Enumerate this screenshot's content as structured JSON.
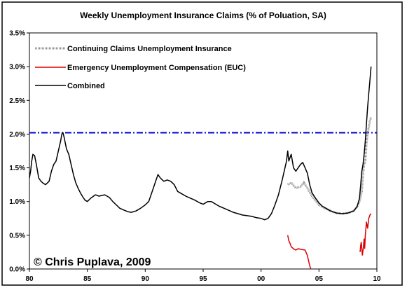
{
  "chart_data": {
    "type": "line",
    "title": "Weekly Unemployment Insurance Claims (% of Poluation, SA)",
    "xlabel": "",
    "ylabel": "",
    "xlim": [
      1980,
      2010
    ],
    "ylim": [
      0.0,
      3.5
    ],
    "x_ticks": [
      1980,
      1985,
      1990,
      1995,
      2000,
      2005,
      2010
    ],
    "x_tick_labels": [
      "80",
      "85",
      "90",
      "95",
      "00",
      "05",
      "10"
    ],
    "y_ticks": [
      0.0,
      0.5,
      1.0,
      1.5,
      2.0,
      2.5,
      3.0,
      3.5
    ],
    "y_tick_labels": [
      "0.0%",
      "0.5%",
      "1.0%",
      "1.5%",
      "2.0%",
      "2.5%",
      "3.0%",
      "3.5%"
    ],
    "grid": false,
    "legend_position": "top-left",
    "reference_line": {
      "y": 2.02,
      "color": "#0000cc",
      "style": "dash-dot"
    },
    "credit": "© Chris Puplava, 2009",
    "series": [
      {
        "name": "Continuing Claims Unemployment Insurance",
        "color": "#888888",
        "points": [
          [
            2002.3,
            1.25
          ],
          [
            2002.6,
            1.28
          ],
          [
            2003.0,
            1.2
          ],
          [
            2003.4,
            1.22
          ],
          [
            2003.7,
            1.28
          ],
          [
            2004.0,
            1.2
          ],
          [
            2004.4,
            1.08
          ],
          [
            2005.0,
            0.95
          ],
          [
            2005.5,
            0.9
          ],
          [
            2006.0,
            0.86
          ],
          [
            2006.5,
            0.83
          ],
          [
            2007.0,
            0.82
          ],
          [
            2007.5,
            0.83
          ],
          [
            2008.0,
            0.86
          ],
          [
            2008.3,
            0.92
          ],
          [
            2008.5,
            1.0
          ],
          [
            2008.7,
            1.15
          ],
          [
            2008.8,
            1.4
          ],
          [
            2008.9,
            1.55
          ],
          [
            2009.0,
            1.6
          ],
          [
            2009.1,
            1.85
          ],
          [
            2009.2,
            2.0
          ],
          [
            2009.3,
            2.1
          ],
          [
            2009.4,
            2.2
          ],
          [
            2009.5,
            2.25
          ]
        ]
      },
      {
        "name": "Emergency Unemployment Compensation (EUC)",
        "color": "#dd0000",
        "segments": [
          [
            [
              2002.3,
              0.5
            ],
            [
              2002.4,
              0.42
            ],
            [
              2002.5,
              0.38
            ],
            [
              2002.6,
              0.33
            ],
            [
              2002.8,
              0.3
            ],
            [
              2003.0,
              0.28
            ],
            [
              2003.2,
              0.3
            ],
            [
              2003.5,
              0.29
            ],
            [
              2003.8,
              0.28
            ],
            [
              2004.0,
              0.2
            ],
            [
              2004.1,
              0.12
            ],
            [
              2004.2,
              0.05
            ],
            [
              2004.3,
              0.0
            ]
          ],
          [
            [
              2008.55,
              0.25
            ],
            [
              2008.6,
              0.35
            ],
            [
              2008.65,
              0.4
            ],
            [
              2008.7,
              0.3
            ],
            [
              2008.75,
              0.2
            ],
            [
              2008.85,
              0.35
            ],
            [
              2008.9,
              0.45
            ],
            [
              2008.95,
              0.3
            ],
            [
              2009.0,
              0.5
            ],
            [
              2009.1,
              0.7
            ],
            [
              2009.2,
              0.6
            ],
            [
              2009.3,
              0.75
            ],
            [
              2009.4,
              0.8
            ],
            [
              2009.5,
              0.82
            ]
          ]
        ]
      },
      {
        "name": "Combined",
        "color": "#000000",
        "points": [
          [
            1980.0,
            1.35
          ],
          [
            1980.1,
            1.45
          ],
          [
            1980.2,
            1.6
          ],
          [
            1980.3,
            1.7
          ],
          [
            1980.45,
            1.68
          ],
          [
            1980.6,
            1.55
          ],
          [
            1980.8,
            1.35
          ],
          [
            1981.0,
            1.3
          ],
          [
            1981.2,
            1.27
          ],
          [
            1981.4,
            1.25
          ],
          [
            1981.7,
            1.3
          ],
          [
            1981.9,
            1.45
          ],
          [
            1982.1,
            1.55
          ],
          [
            1982.3,
            1.6
          ],
          [
            1982.5,
            1.75
          ],
          [
            1982.7,
            1.9
          ],
          [
            1982.8,
            2.0
          ],
          [
            1982.9,
            2.02
          ],
          [
            1983.0,
            1.95
          ],
          [
            1983.2,
            1.78
          ],
          [
            1983.4,
            1.7
          ],
          [
            1983.6,
            1.55
          ],
          [
            1983.8,
            1.4
          ],
          [
            1984.0,
            1.28
          ],
          [
            1984.2,
            1.2
          ],
          [
            1984.4,
            1.13
          ],
          [
            1984.6,
            1.07
          ],
          [
            1984.8,
            1.02
          ],
          [
            1985.0,
            1.0
          ],
          [
            1985.3,
            1.05
          ],
          [
            1985.7,
            1.1
          ],
          [
            1986.0,
            1.08
          ],
          [
            1986.5,
            1.1
          ],
          [
            1986.9,
            1.06
          ],
          [
            1987.2,
            1.0
          ],
          [
            1987.5,
            0.95
          ],
          [
            1987.8,
            0.9
          ],
          [
            1988.2,
            0.87
          ],
          [
            1988.5,
            0.85
          ],
          [
            1988.8,
            0.84
          ],
          [
            1989.2,
            0.86
          ],
          [
            1989.6,
            0.9
          ],
          [
            1990.0,
            0.95
          ],
          [
            1990.3,
            1.0
          ],
          [
            1990.6,
            1.15
          ],
          [
            1990.9,
            1.3
          ],
          [
            1991.1,
            1.4
          ],
          [
            1991.3,
            1.35
          ],
          [
            1991.6,
            1.3
          ],
          [
            1991.9,
            1.32
          ],
          [
            1992.2,
            1.3
          ],
          [
            1992.5,
            1.25
          ],
          [
            1992.8,
            1.15
          ],
          [
            1993.1,
            1.12
          ],
          [
            1993.5,
            1.08
          ],
          [
            1993.9,
            1.05
          ],
          [
            1994.3,
            1.02
          ],
          [
            1994.7,
            0.98
          ],
          [
            1995.0,
            0.96
          ],
          [
            1995.4,
            1.0
          ],
          [
            1995.7,
            1.0
          ],
          [
            1996.0,
            0.97
          ],
          [
            1996.4,
            0.93
          ],
          [
            1996.8,
            0.9
          ],
          [
            1997.2,
            0.87
          ],
          [
            1997.6,
            0.84
          ],
          [
            1998.0,
            0.82
          ],
          [
            1998.4,
            0.8
          ],
          [
            1998.8,
            0.79
          ],
          [
            1999.2,
            0.78
          ],
          [
            1999.6,
            0.76
          ],
          [
            2000.0,
            0.75
          ],
          [
            2000.3,
            0.73
          ],
          [
            2000.6,
            0.75
          ],
          [
            2000.9,
            0.82
          ],
          [
            2001.2,
            0.95
          ],
          [
            2001.5,
            1.1
          ],
          [
            2001.8,
            1.3
          ],
          [
            2002.0,
            1.45
          ],
          [
            2002.2,
            1.6
          ],
          [
            2002.3,
            1.75
          ],
          [
            2002.4,
            1.6
          ],
          [
            2002.6,
            1.7
          ],
          [
            2002.8,
            1.5
          ],
          [
            2003.0,
            1.45
          ],
          [
            2003.2,
            1.5
          ],
          [
            2003.4,
            1.55
          ],
          [
            2003.6,
            1.58
          ],
          [
            2003.8,
            1.5
          ],
          [
            2004.0,
            1.42
          ],
          [
            2004.2,
            1.25
          ],
          [
            2004.4,
            1.13
          ],
          [
            2004.7,
            1.05
          ],
          [
            2005.0,
            0.98
          ],
          [
            2005.3,
            0.93
          ],
          [
            2005.6,
            0.9
          ],
          [
            2006.0,
            0.86
          ],
          [
            2006.5,
            0.83
          ],
          [
            2007.0,
            0.82
          ],
          [
            2007.5,
            0.83
          ],
          [
            2008.0,
            0.86
          ],
          [
            2008.3,
            0.93
          ],
          [
            2008.5,
            1.05
          ],
          [
            2008.6,
            1.25
          ],
          [
            2008.7,
            1.45
          ],
          [
            2008.8,
            1.55
          ],
          [
            2008.9,
            1.7
          ],
          [
            2009.0,
            1.9
          ],
          [
            2009.1,
            2.15
          ],
          [
            2009.2,
            2.4
          ],
          [
            2009.3,
            2.6
          ],
          [
            2009.4,
            2.8
          ],
          [
            2009.5,
            3.0
          ]
        ]
      }
    ]
  }
}
